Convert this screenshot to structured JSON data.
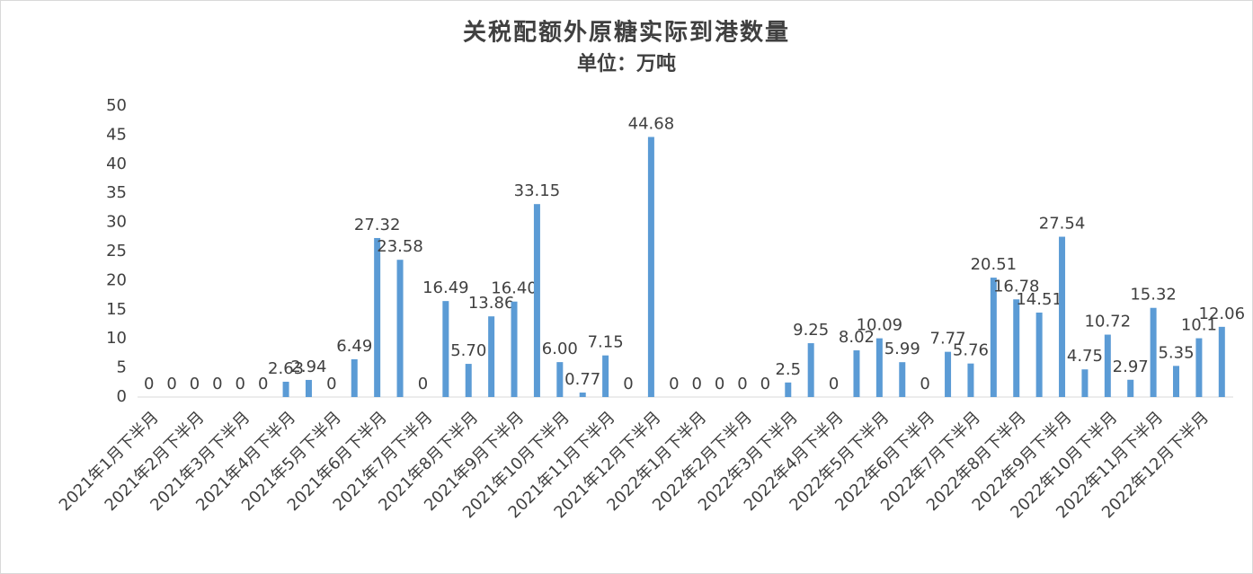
{
  "chart_data": {
    "type": "bar",
    "title": "关税配额外原糖实际到港数量",
    "subtitle": "单位：万吨",
    "categories": [
      "2021年1月下半月",
      null,
      "2021年2月下半月",
      null,
      "2021年3月下半月",
      null,
      "2021年4月下半月",
      null,
      "2021年5月下半月",
      null,
      "2021年6月下半月",
      null,
      "2021年7月下半月",
      null,
      "2021年8月下半月",
      null,
      "2021年9月下半月",
      null,
      "2021年10月下半月",
      null,
      "2021年11月下半月",
      null,
      "2021年12月下半月",
      null,
      "2022年1月下半月",
      null,
      "2022年2月下半月",
      null,
      "2022年3月下半月",
      null,
      "2022年4月下半月",
      null,
      "2022年5月下半月",
      null,
      "2022年6月下半月",
      null,
      "2022年7月下半月",
      null,
      "2022年8月下半月",
      null,
      "2022年9月下半月",
      null,
      "2022年10月下半月",
      null,
      "2022年11月下半月",
      null,
      "2022年12月下半月",
      null
    ],
    "values": [
      0,
      0,
      0,
      0,
      0,
      0,
      2.63,
      2.94,
      0,
      6.49,
      27.32,
      23.58,
      0,
      16.49,
      5.7,
      13.86,
      16.4,
      33.15,
      6,
      0.77,
      7.15,
      0,
      44.68,
      0,
      0,
      0,
      0,
      0,
      2.5,
      9.25,
      0,
      8.02,
      10.09,
      5.99,
      0,
      7.77,
      5.76,
      20.51,
      16.78,
      14.51,
      27.54,
      4.75,
      10.72,
      2.97,
      15.32,
      5.35,
      10.1,
      12.06
    ],
    "value_labels": [
      "0",
      "0",
      "0",
      "0",
      "0",
      "0",
      "2.63",
      "2.94",
      "0",
      "6.49",
      "27.32",
      "23.58",
      "0",
      "16.49",
      "5.70",
      "13.86",
      "16.40",
      "33.15",
      "6.00",
      "0.77",
      "7.15",
      "0",
      "44.68",
      "0",
      "0",
      "0",
      "0",
      "0",
      "2.5",
      "9.25",
      "0",
      "8.02",
      "10.09",
      "5.99",
      "0",
      "7.77",
      "5.76",
      "20.51",
      "16.78",
      "14.51",
      "27.54",
      "4.75",
      "10.72",
      "2.97",
      "15.32",
      "5.35",
      "10.1",
      "12.06"
    ],
    "color": "#5b9bd5",
    "ylim": [
      0,
      50
    ],
    "yticks": [
      0,
      5,
      10,
      15,
      20,
      25,
      30,
      35,
      40,
      45,
      50
    ],
    "grid": false
  }
}
